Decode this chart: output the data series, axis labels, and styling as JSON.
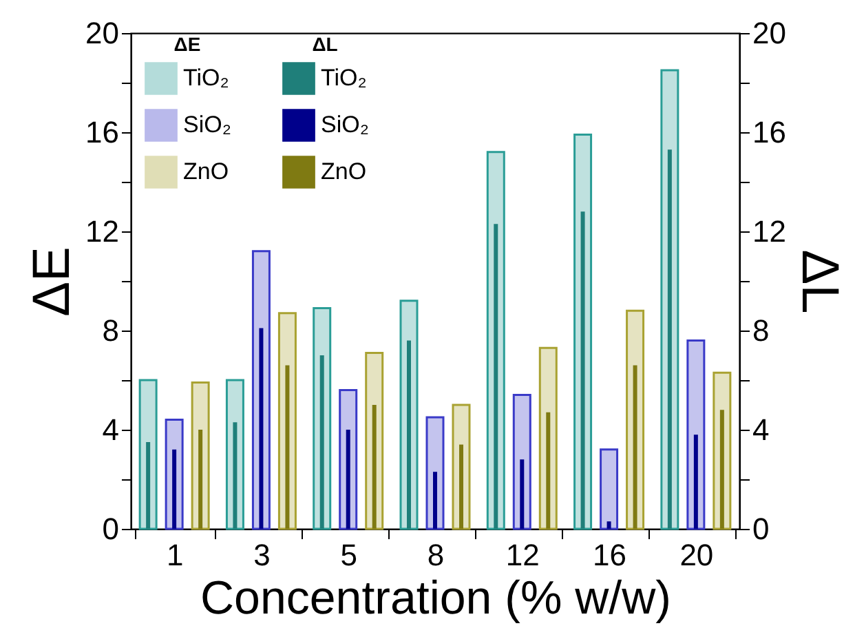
{
  "chart_data": {
    "type": "bar",
    "xlabel": "Concentration (% w/w)",
    "ylabel": "ΔE",
    "y2label": "ΔL",
    "categories": [
      "1",
      "3",
      "5",
      "8",
      "12",
      "16",
      "20"
    ],
    "series": [
      {
        "name": "TiO₂",
        "color": "#2a9d96",
        "values": [
          6.0,
          6.0,
          8.9,
          9.2,
          15.2,
          15.9,
          18.5
        ]
      },
      {
        "name": "SiO₂",
        "color": "#3a3ac8",
        "values": [
          4.4,
          11.2,
          5.6,
          4.5,
          5.4,
          3.2,
          7.6
        ]
      },
      {
        "name": "ZnO",
        "color": "#a9a232",
        "values": [
          5.9,
          8.7,
          7.1,
          5.0,
          7.3,
          8.8,
          6.3
        ]
      },
      {
        "name": "TiO₂",
        "color": "#1f7f7a",
        "axis": "y2",
        "values": [
          3.5,
          4.3,
          7.0,
          7.6,
          12.3,
          12.8,
          15.3
        ]
      },
      {
        "name": "SiO₂",
        "color": "#00008b",
        "axis": "y2",
        "values": [
          3.2,
          8.1,
          4.0,
          2.3,
          2.8,
          0.3,
          3.8
        ]
      },
      {
        "name": "ZnO",
        "color": "#7f7a12",
        "axis": "y2",
        "values": [
          4.0,
          6.6,
          5.0,
          3.4,
          4.7,
          6.6,
          4.8
        ]
      }
    ],
    "ylim": [
      0,
      20
    ],
    "yticks": [
      0,
      {
        "value": 2,
        "label": null
      },
      4,
      {
        "value": 6,
        "label": null
      },
      8,
      {
        "value": 10,
        "label": null
      },
      12,
      {
        "value": 14,
        "label": null
      },
      16,
      {
        "value": 18,
        "label": null
      },
      20
    ],
    "y2lim": [
      0,
      20
    ],
    "y2ticks": [
      0,
      {
        "value": 2,
        "label": null
      },
      4,
      {
        "value": 6,
        "label": null
      },
      8,
      {
        "value": 10,
        "label": null
      },
      12,
      {
        "value": 14,
        "label": null
      },
      16,
      {
        "value": 18,
        "label": null
      },
      20
    ],
    "annotations": [
      "ΔE",
      "ΔL"
    ],
    "legend": "top left",
    "grid": false
  }
}
